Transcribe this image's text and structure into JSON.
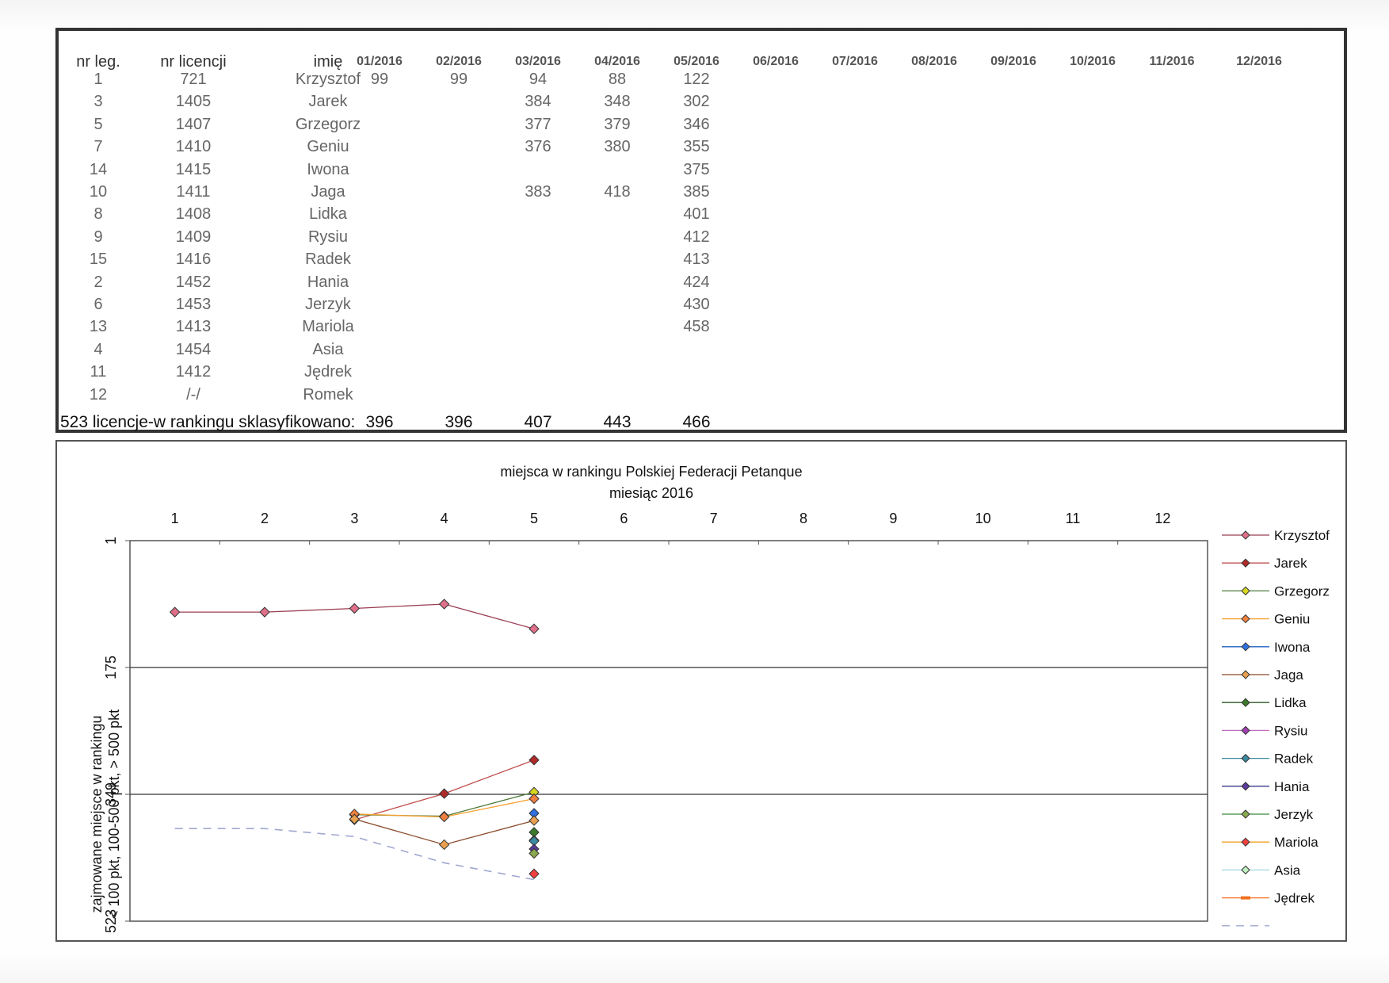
{
  "table": {
    "headers": {
      "nr_leg": "nr leg.",
      "nr_licencji": "nr licencji",
      "imie": "imię",
      "months": [
        "01/2016",
        "02/2016",
        "03/2016",
        "04/2016",
        "05/2016",
        "06/2016",
        "07/2016",
        "08/2016",
        "09/2016",
        "10/2016",
        "11/2016",
        "12/2016"
      ]
    },
    "rows": [
      {
        "nr_leg": "1",
        "nr_licencji": "721",
        "imie": "Krzysztof",
        "m": [
          "99",
          "99",
          "94",
          "88",
          "122"
        ]
      },
      {
        "nr_leg": "3",
        "nr_licencji": "1405",
        "imie": "Jarek",
        "m": [
          "",
          "",
          "384",
          "348",
          "302"
        ]
      },
      {
        "nr_leg": "5",
        "nr_licencji": "1407",
        "imie": "Grzegorz",
        "m": [
          "",
          "",
          "377",
          "379",
          "346"
        ]
      },
      {
        "nr_leg": "7",
        "nr_licencji": "1410",
        "imie": "Geniu",
        "m": [
          "",
          "",
          "376",
          "380",
          "355"
        ]
      },
      {
        "nr_leg": "14",
        "nr_licencji": "1415",
        "imie": "Iwona",
        "m": [
          "",
          "",
          "",
          "",
          "375"
        ]
      },
      {
        "nr_leg": "10",
        "nr_licencji": "1411",
        "imie": "Jaga",
        "m": [
          "",
          "",
          "383",
          "418",
          "385"
        ]
      },
      {
        "nr_leg": "8",
        "nr_licencji": "1408",
        "imie": "Lidka",
        "m": [
          "",
          "",
          "",
          "",
          "401"
        ]
      },
      {
        "nr_leg": "9",
        "nr_licencji": "1409",
        "imie": "Rysiu",
        "m": [
          "",
          "",
          "",
          "",
          "412"
        ]
      },
      {
        "nr_leg": "15",
        "nr_licencji": "1416",
        "imie": "Radek",
        "m": [
          "",
          "",
          "",
          "",
          "413"
        ]
      },
      {
        "nr_leg": "2",
        "nr_licencji": "1452",
        "imie": "Hania",
        "m": [
          "",
          "",
          "",
          "",
          "424"
        ]
      },
      {
        "nr_leg": "6",
        "nr_licencji": "1453",
        "imie": "Jerzyk",
        "m": [
          "",
          "",
          "",
          "",
          "430"
        ]
      },
      {
        "nr_leg": "13",
        "nr_licencji": "1413",
        "imie": "Mariola",
        "m": [
          "",
          "",
          "",
          "",
          "458"
        ]
      },
      {
        "nr_leg": "4",
        "nr_licencji": "1454",
        "imie": "Asia",
        "m": [
          "",
          "",
          "",
          "",
          ""
        ]
      },
      {
        "nr_leg": "11",
        "nr_licencji": "1412",
        "imie": "Jędrek",
        "m": [
          "",
          "",
          "",
          "",
          ""
        ]
      },
      {
        "nr_leg": "12",
        "nr_licencji": "/-/",
        "imie": "Romek",
        "m": [
          "",
          "",
          "",
          "",
          ""
        ]
      }
    ],
    "footer": {
      "label": "523 licencje-w rankingu sklasyfikowano:",
      "values": [
        "396",
        "396",
        "407",
        "443",
        "466"
      ]
    }
  },
  "chart_data": {
    "type": "line",
    "title": "miejsca w rankingu Polskiej Federacji Petanque",
    "subtitle": "miesiąc 2016",
    "x": [
      1,
      2,
      3,
      4,
      5,
      6,
      7,
      8,
      9,
      10,
      11,
      12
    ],
    "xlim": [
      0.5,
      12.5
    ],
    "y_reversed": true,
    "ylim": [
      1,
      523
    ],
    "y_ticks": [
      "1",
      "175",
      "349",
      "523"
    ],
    "y_label_lines": [
      "zajmowane miejsce w rankingu",
      "< 100 pkt, 100-500 pkt, > 500 pkt"
    ],
    "grid": "horizontal lines at 175 and 349",
    "legend_position": "right",
    "series": [
      {
        "name": "Krzysztof",
        "color": "#9b3f55",
        "marker": "#e0708a",
        "values": [
          99,
          99,
          94,
          88,
          122,
          null,
          null,
          null,
          null,
          null,
          null,
          null
        ]
      },
      {
        "name": "Jarek",
        "color": "#c0504d",
        "marker": "#b02a2a",
        "values": [
          null,
          null,
          384,
          348,
          302,
          null,
          null,
          null,
          null,
          null,
          null,
          null
        ]
      },
      {
        "name": "Grzegorz",
        "color": "#4f7a3a",
        "marker": "#d8d820",
        "values": [
          null,
          null,
          377,
          379,
          346,
          null,
          null,
          null,
          null,
          null,
          null,
          null
        ]
      },
      {
        "name": "Geniu",
        "color": "#f5a030",
        "marker": "#f08040",
        "values": [
          null,
          null,
          376,
          380,
          355,
          null,
          null,
          null,
          null,
          null,
          null,
          null
        ]
      },
      {
        "name": "Iwona",
        "color": "#2060c0",
        "marker": "#3070e0",
        "values": [
          null,
          null,
          null,
          null,
          375,
          null,
          null,
          null,
          null,
          null,
          null,
          null
        ]
      },
      {
        "name": "Jaga",
        "color": "#8a4a2a",
        "marker": "#e8a050",
        "values": [
          null,
          null,
          383,
          418,
          385,
          null,
          null,
          null,
          null,
          null,
          null,
          null
        ]
      },
      {
        "name": "Lidka",
        "color": "#2f5a2a",
        "marker": "#3a7a2a",
        "values": [
          null,
          null,
          null,
          null,
          401,
          null,
          null,
          null,
          null,
          null,
          null,
          null
        ]
      },
      {
        "name": "Rysiu",
        "color": "#c070c0",
        "marker": "#a040b0",
        "values": [
          null,
          null,
          null,
          null,
          412,
          null,
          null,
          null,
          null,
          null,
          null,
          null
        ]
      },
      {
        "name": "Radek",
        "color": "#3a8aa0",
        "marker": "#3a8aa0",
        "values": [
          null,
          null,
          null,
          null,
          413,
          null,
          null,
          null,
          null,
          null,
          null,
          null
        ]
      },
      {
        "name": "Hania",
        "color": "#3a3a90",
        "marker": "#5a3a9a",
        "values": [
          null,
          null,
          null,
          null,
          424,
          null,
          null,
          null,
          null,
          null,
          null,
          null
        ]
      },
      {
        "name": "Jerzyk",
        "color": "#3a8a3a",
        "marker": "#8aaa50",
        "values": [
          null,
          null,
          null,
          null,
          430,
          null,
          null,
          null,
          null,
          null,
          null,
          null
        ]
      },
      {
        "name": "Mariola",
        "color": "#f0a020",
        "marker": "#f04040",
        "values": [
          null,
          null,
          null,
          null,
          458,
          null,
          null,
          null,
          null,
          null,
          null,
          null
        ]
      },
      {
        "name": "Asia",
        "color": "#a0d8e0",
        "marker": "#c0f0c0",
        "values": [
          null,
          null,
          null,
          null,
          null,
          null,
          null,
          null,
          null,
          null,
          null,
          null
        ]
      },
      {
        "name": "Jędrek",
        "color": "#f07020",
        "marker": "#f07020",
        "values": [
          null,
          null,
          null,
          null,
          null,
          null,
          null,
          null,
          null,
          null,
          null,
          null
        ]
      },
      {
        "name": "",
        "color": "#a0a8d0",
        "dashed": true,
        "values": [
          396,
          396,
          407,
          443,
          466,
          null,
          null,
          null,
          null,
          null,
          null,
          null
        ]
      }
    ]
  }
}
